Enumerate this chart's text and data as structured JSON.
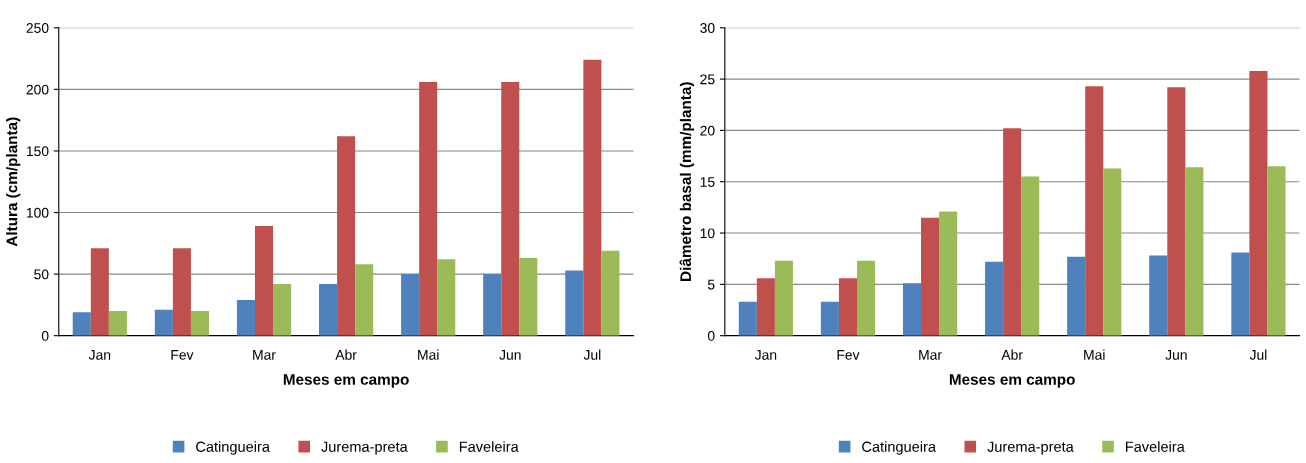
{
  "chart_data": [
    {
      "type": "bar",
      "xlabel": "Meses em campo",
      "ylabel": "Altura (cm/planta)",
      "categories": [
        "Jan",
        "Fev",
        "Mar",
        "Abr",
        "Mai",
        "Jun",
        "Jul"
      ],
      "series": [
        {
          "name": "Catingueira",
          "color": "#4f81bd",
          "values": [
            19,
            21,
            29,
            42,
            50,
            50,
            53
          ]
        },
        {
          "name": "Jurema-preta",
          "color": "#c0504d",
          "values": [
            71,
            71,
            89,
            162,
            206,
            206,
            224
          ]
        },
        {
          "name": "Faveleira",
          "color": "#9bbb59",
          "values": [
            20,
            20,
            42,
            58,
            62,
            63,
            69
          ]
        }
      ],
      "ylim": [
        0,
        250
      ],
      "yticks": [
        0,
        50,
        100,
        150,
        200,
        250
      ],
      "grid": "y",
      "legend": "bottom"
    },
    {
      "type": "bar",
      "xlabel": "Meses em campo",
      "ylabel": "Diâmetro basal (mm/planta)",
      "categories": [
        "Jan",
        "Fev",
        "Mar",
        "Abr",
        "Mai",
        "Jun",
        "Jul"
      ],
      "series": [
        {
          "name": "Catingueira",
          "color": "#4f81bd",
          "values": [
            3.3,
            3.3,
            5.1,
            7.2,
            7.7,
            7.8,
            8.1
          ]
        },
        {
          "name": "Jurema-preta",
          "color": "#c0504d",
          "values": [
            5.6,
            5.6,
            11.5,
            20.2,
            24.3,
            24.2,
            25.8
          ]
        },
        {
          "name": "Faveleira",
          "color": "#9bbb59",
          "values": [
            7.3,
            7.3,
            12.1,
            15.5,
            16.3,
            16.4,
            16.5
          ]
        }
      ],
      "ylim": [
        0,
        30
      ],
      "yticks": [
        0,
        5,
        10,
        15,
        20,
        25,
        30
      ],
      "grid": "y",
      "legend": "bottom"
    }
  ]
}
